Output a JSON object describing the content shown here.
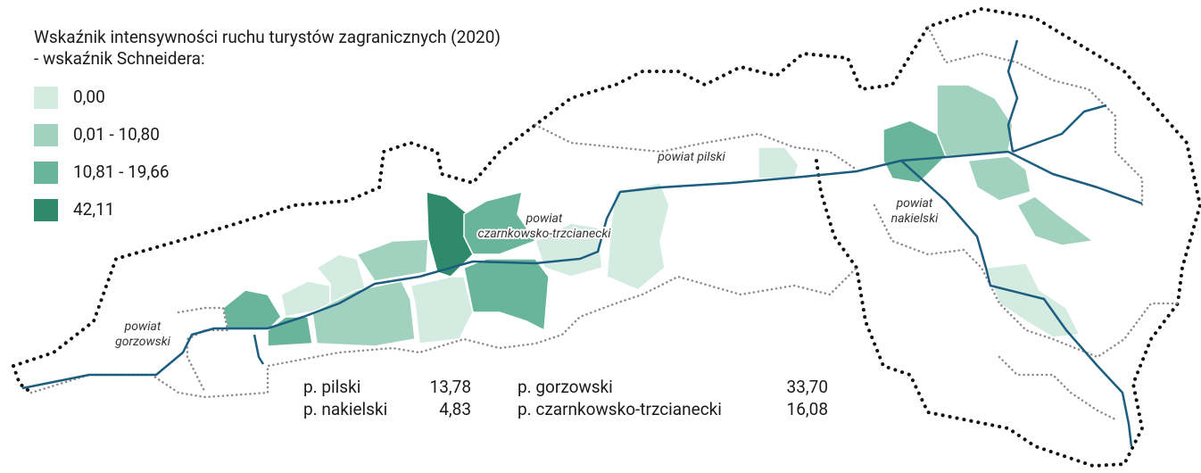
{
  "title": "Wskaźnik intensywności ruchu turystów zagranicznych (2020)",
  "subtitle": "- wskaźnik Schneidera:",
  "legend": [
    {
      "label": "0,00",
      "color": "#d3ebe1"
    },
    {
      "label": "0,01 - 10,80",
      "color": "#a0d2bf"
    },
    {
      "label": "10,81 - 19,66",
      "color": "#68b59b"
    },
    {
      "label": "42,11",
      "color": "#2f8a6b"
    }
  ],
  "regions": [
    {
      "label": [
        "powiat pilski"
      ]
    },
    {
      "label": [
        "powiat",
        "czarnkowsko-trzcianecki"
      ]
    },
    {
      "label": [
        "powiat",
        "nakielski"
      ]
    },
    {
      "label": [
        "powiat",
        "gorzowski"
      ]
    }
  ],
  "stats": [
    {
      "name": "p. pilski",
      "value": "13,78"
    },
    {
      "name": "p. nakielski",
      "value": "4,83"
    },
    {
      "name": "p. gorzowski",
      "value": "33,70"
    },
    {
      "name": "p. czarnkowsko-trzcianecki",
      "value": "16,08"
    }
  ]
}
